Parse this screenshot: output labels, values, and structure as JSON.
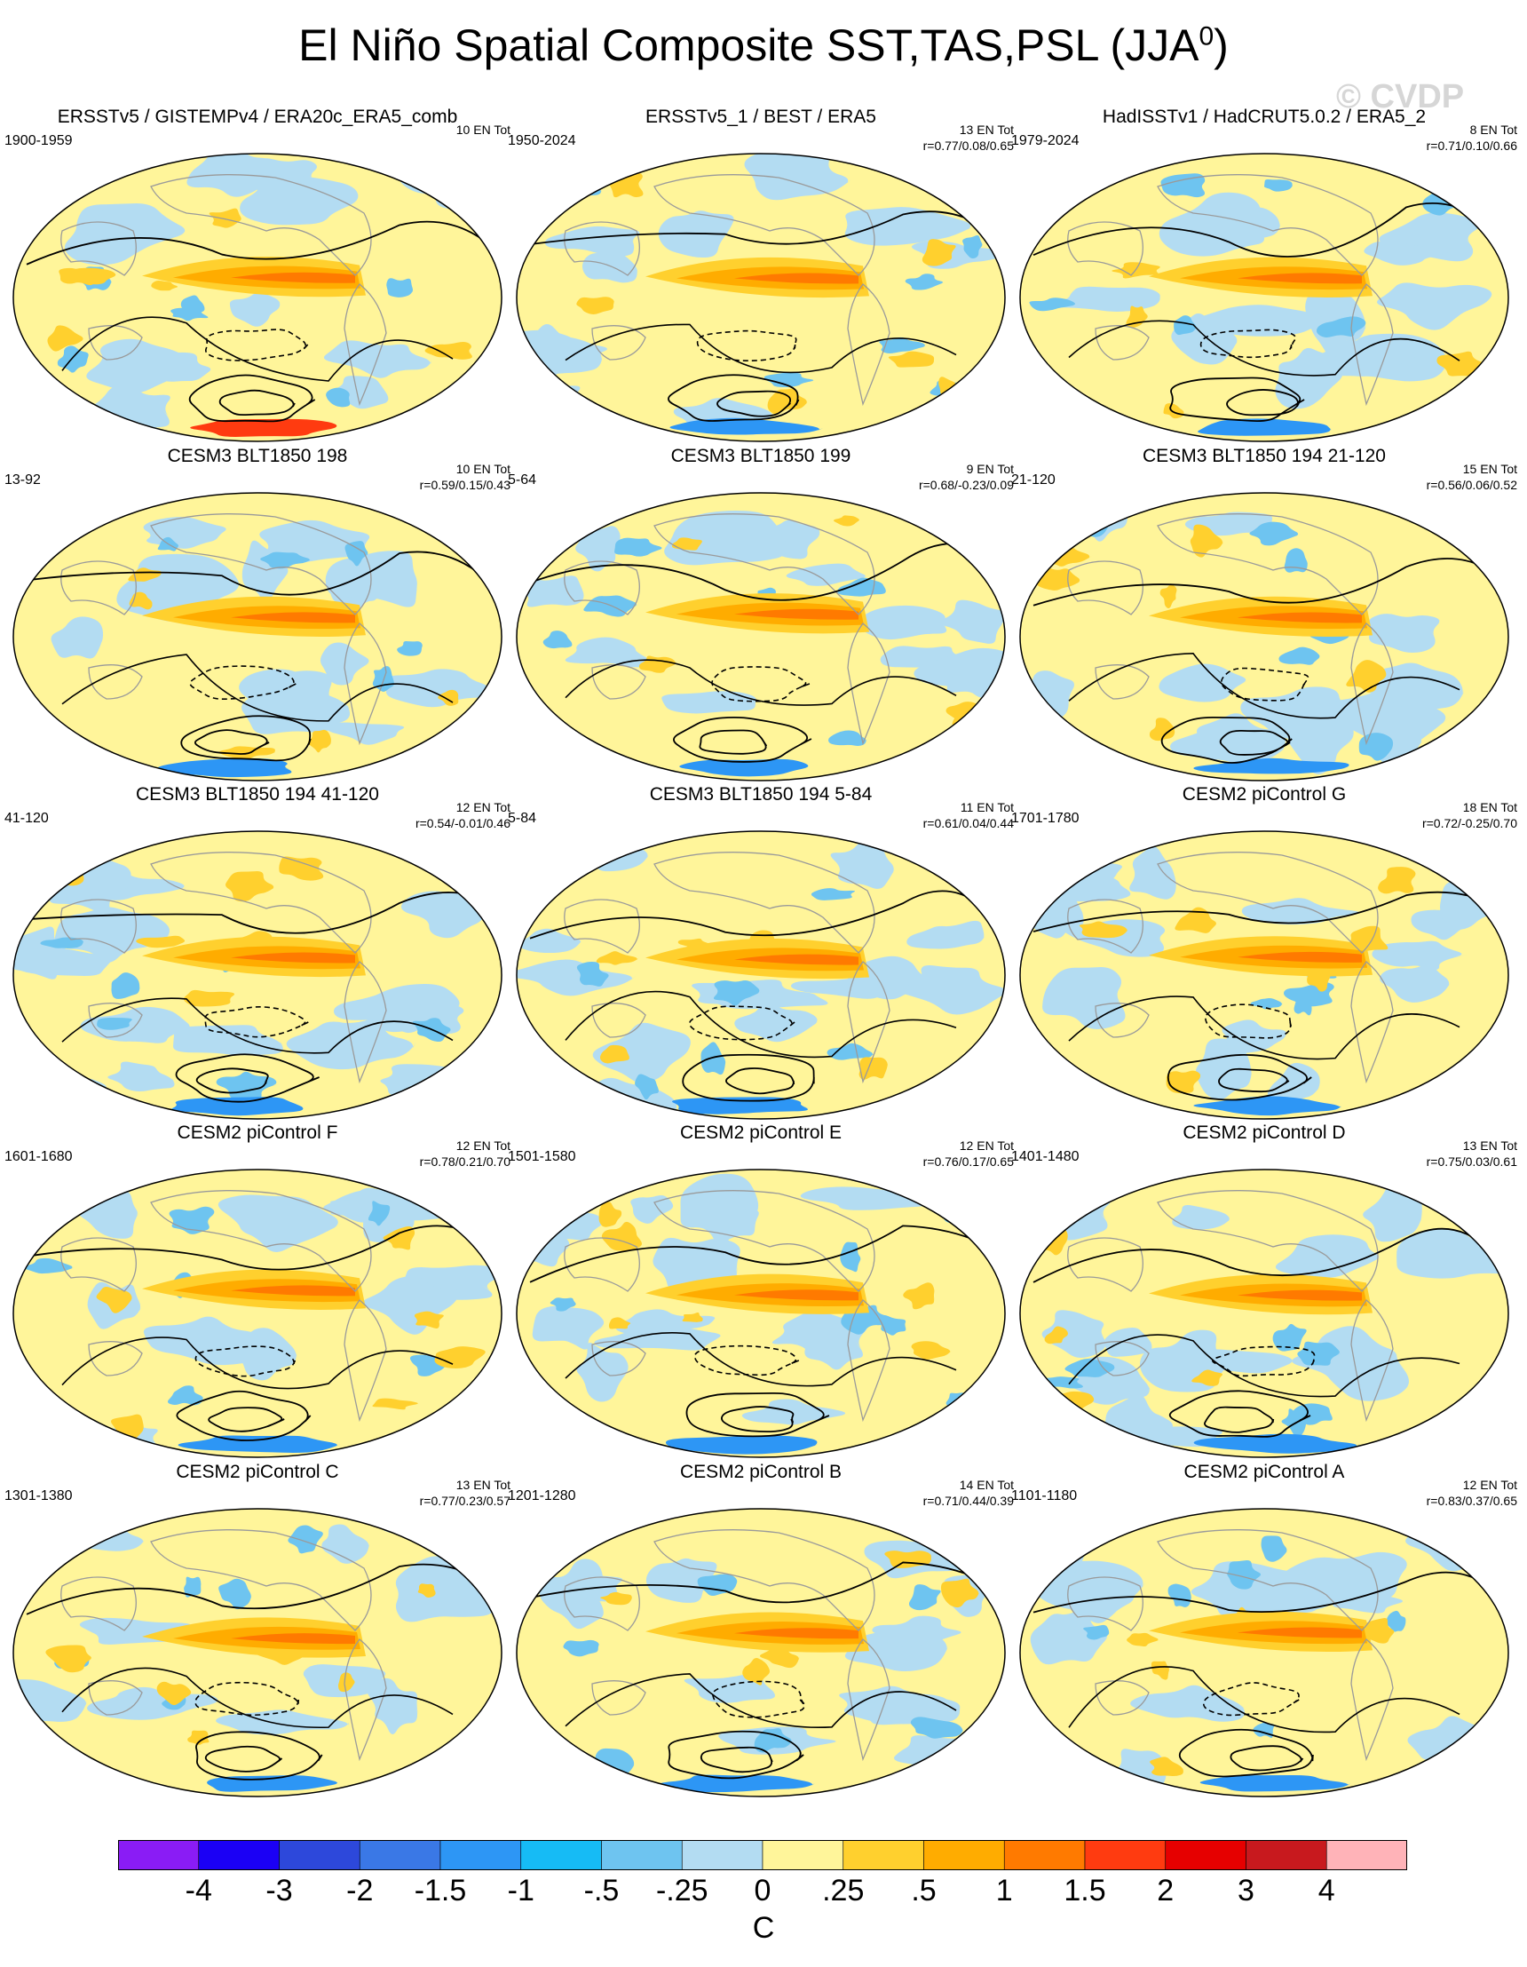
{
  "title": "El Niño Spatial Composite SST,TAS,PSL (JJA",
  "title_superscript": "0",
  "title_close": ")",
  "watermark": "© CVDP",
  "panels": [
    {
      "title": "ERSSTv5 / GISTEMPv4 / ERA20c_ERA5_comb",
      "years": "1900-1959",
      "count": "10 EN Tot",
      "corr": ""
    },
    {
      "title": "ERSSTv5_1 / BEST / ERA5",
      "years": "1950-2024",
      "count": "13 EN Tot",
      "corr": "r=0.77/0.08/0.65"
    },
    {
      "title": "HadISSTv1 / HadCRUT5.0.2 / ERA5_2",
      "years": "1979-2024",
      "count": "8 EN Tot",
      "corr": "r=0.71/0.10/0.66"
    },
    {
      "title": "CESM3 BLT1850 198",
      "years": "13-92",
      "count": "10 EN Tot",
      "corr": "r=0.59/0.15/0.43"
    },
    {
      "title": "CESM3 BLT1850 199",
      "years": "5-64",
      "count": "9 EN Tot",
      "corr": "r=0.68/-0.23/0.09"
    },
    {
      "title": "CESM3 BLT1850 194 21-120",
      "years": "21-120",
      "count": "15 EN Tot",
      "corr": "r=0.56/0.06/0.52"
    },
    {
      "title": "CESM3 BLT1850 194 41-120",
      "years": "41-120",
      "count": "12 EN Tot",
      "corr": "r=0.54/-0.01/0.46"
    },
    {
      "title": "CESM3 BLT1850 194 5-84",
      "years": "5-84",
      "count": "11 EN Tot",
      "corr": "r=0.61/0.04/0.44"
    },
    {
      "title": "CESM2 piControl G",
      "years": "1701-1780",
      "count": "18 EN Tot",
      "corr": "r=0.72/-0.25/0.70"
    },
    {
      "title": "CESM2 piControl F",
      "years": "1601-1680",
      "count": "12 EN Tot",
      "corr": "r=0.78/0.21/0.70"
    },
    {
      "title": "CESM2 piControl E",
      "years": "1501-1580",
      "count": "12 EN Tot",
      "corr": "r=0.76/0.17/0.65"
    },
    {
      "title": "CESM2 piControl D",
      "years": "1401-1480",
      "count": "13 EN Tot",
      "corr": "r=0.75/0.03/0.61"
    },
    {
      "title": "CESM2 piControl C",
      "years": "1301-1380",
      "count": "13 EN Tot",
      "corr": "r=0.77/0.23/0.57"
    },
    {
      "title": "CESM2 piControl B",
      "years": "1201-1280",
      "count": "14 EN Tot",
      "corr": "r=0.71/0.44/0.39"
    },
    {
      "title": "CESM2 piControl A",
      "years": "1101-1180",
      "count": "12 EN Tot",
      "corr": "r=0.83/0.37/0.65"
    }
  ],
  "colorbar": {
    "colors": [
      "#8a1cf5",
      "#1b00f5",
      "#2d48db",
      "#3a78e6",
      "#2d96f5",
      "#16bbf5",
      "#6ec4f0",
      "#b3dcf2",
      "#fff59a",
      "#ffd02e",
      "#ffac00",
      "#ff7a00",
      "#ff3b10",
      "#e60000",
      "#c8191e",
      "#ffb3b8"
    ],
    "labels": [
      "-4",
      "-3",
      "-2",
      "-1.5",
      "-1",
      "-.5",
      "-.25",
      "0",
      ".25",
      ".5",
      "1",
      "1.5",
      "2",
      "3",
      "4"
    ],
    "units": "C"
  }
}
